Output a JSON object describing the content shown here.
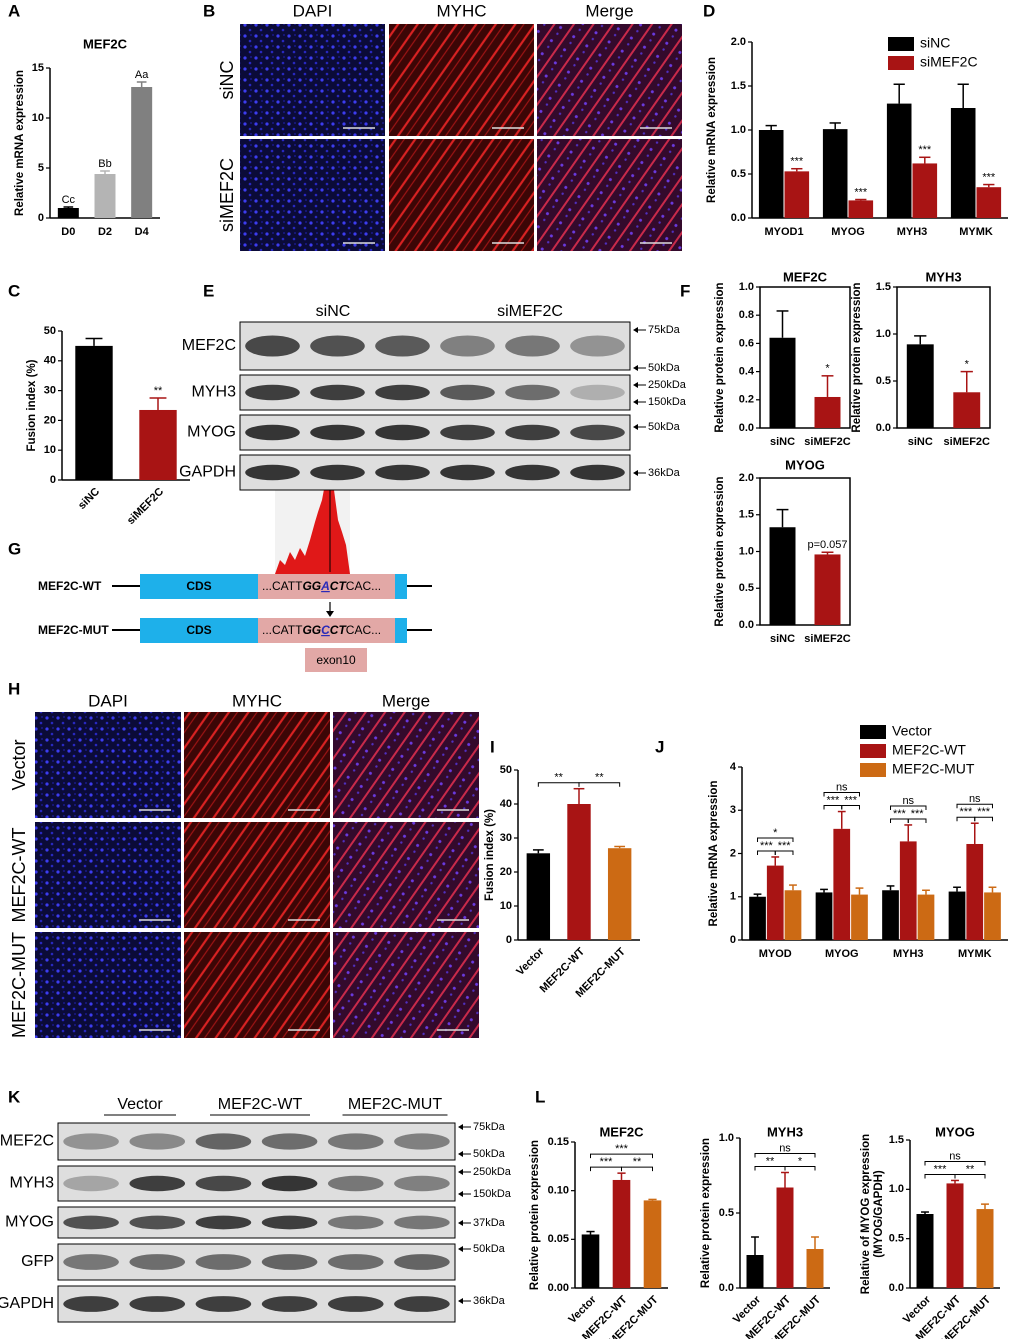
{
  "panel_labels": [
    "A",
    "B",
    "C",
    "D",
    "E",
    "F",
    "G",
    "H",
    "I",
    "J",
    "K",
    "L"
  ],
  "microscopy_b": {
    "columns": [
      "DAPI",
      "MYHC",
      "Merge"
    ],
    "rows": [
      "siNC",
      "siMEF2C"
    ]
  },
  "western_e": {
    "groups": [
      "siNC",
      "siMEF2C"
    ],
    "proteins": [
      "MEF2C",
      "MYH3",
      "MYOG",
      "GAPDH"
    ],
    "markers": [
      "75kDa",
      "50kDa",
      "250kDa",
      "150kDa",
      "50kDa",
      "36kDa"
    ]
  },
  "diagram_g": {
    "constructs": [
      {
        "name": "MEF2C-WT",
        "region": "CDS",
        "sequence": [
          "...CATT",
          "GG",
          "A",
          "CT",
          "CAC..."
        ]
      },
      {
        "name": "MEF2C-MUT",
        "region": "CDS",
        "sequence": [
          "...CATT",
          "GG",
          "C",
          "CT",
          "CAC..."
        ]
      }
    ],
    "exon": "exon10"
  },
  "microscopy_h": {
    "columns": [
      "DAPI",
      "MYHC",
      "Merge"
    ],
    "rows": [
      "Vector",
      "MEF2C-WT",
      "MEF2C-MUT"
    ]
  },
  "western_k": {
    "groups": [
      "Vector",
      "MEF2C-WT",
      "MEF2C-MUT"
    ],
    "proteins": [
      "MEF2C",
      "MYH3",
      "MYOG",
      "GFP",
      "GAPDH"
    ],
    "markers": [
      "75kDa",
      "50kDa",
      "250kDa",
      "150kDa",
      "37kDa",
      "50kDa",
      "36kDa"
    ]
  },
  "chart_data": [
    {
      "type": "bar",
      "title": "MEF2C",
      "ylabel": "Relative mRNA expression",
      "categories": [
        "D0",
        "D2",
        "D4"
      ],
      "values": [
        1,
        4.4,
        13.1
      ],
      "errors": [
        0.1,
        0.3,
        0.5
      ],
      "annotations": [
        "Cc",
        "Bb",
        "Aa"
      ],
      "colors": [
        "#000000",
        "#b4b4b4",
        "#808080"
      ],
      "ylim": [
        0,
        15
      ],
      "yticks": [
        0,
        5,
        10,
        15
      ]
    },
    {
      "type": "bar",
      "ylabel": "Relative mRNA expression",
      "categories": [
        "MYOD1",
        "MYOG",
        "MYH3",
        "MYMK"
      ],
      "series": [
        {
          "name": "siNC",
          "color": "#000000",
          "values": [
            1.0,
            1.01,
            1.3,
            1.25
          ],
          "errors": [
            0.05,
            0.07,
            0.22,
            0.27
          ]
        },
        {
          "name": "siMEF2C",
          "color": "#a81414",
          "values": [
            0.53,
            0.2,
            0.62,
            0.35
          ],
          "errors": [
            0.03,
            0.01,
            0.07,
            0.03
          ],
          "annotations": [
            "***",
            "***",
            "***",
            "***"
          ]
        }
      ],
      "ylim": [
        0,
        2
      ],
      "yticks": [
        {
          "value": 0,
          "label": "0.0"
        },
        0.5,
        {
          "value": 1,
          "label": "1.0"
        },
        1.5,
        {
          "value": 2,
          "label": "2.0"
        }
      ],
      "legend": "upper right"
    },
    {
      "type": "bar",
      "ylabel": "Fusion index (%)",
      "categories": [
        "siNC",
        "siMEF2C"
      ],
      "values": [
        45,
        23.5
      ],
      "errors": [
        2.5,
        4
      ],
      "annotations": [
        null,
        "**"
      ],
      "colors": [
        "#000000",
        "#a81414"
      ],
      "ylim": [
        0,
        50
      ],
      "yticks": [
        0,
        10,
        20,
        30,
        40,
        50
      ]
    },
    {
      "type": "bar",
      "title": "MEF2C",
      "ylabel": "Relative protein expression",
      "categories": [
        "siNC",
        "siMEF2C"
      ],
      "values": [
        0.64,
        0.22
      ],
      "errors": [
        0.19,
        0.15
      ],
      "annotations": [
        null,
        "*"
      ],
      "colors": [
        "#000000",
        "#a81414"
      ],
      "ylim": [
        0,
        1
      ],
      "yticks": [
        {
          "value": 0,
          "label": "0.0"
        },
        0.2,
        0.4,
        0.6,
        0.8,
        {
          "value": 1,
          "label": "1.0"
        }
      ]
    },
    {
      "type": "bar",
      "title": "MYH3",
      "ylabel": "Relative protein expression",
      "categories": [
        "siNC",
        "siMEF2C"
      ],
      "values": [
        0.89,
        0.38
      ],
      "errors": [
        0.09,
        0.22
      ],
      "annotations": [
        null,
        "*"
      ],
      "colors": [
        "#000000",
        "#a81414"
      ],
      "ylim": [
        0,
        1.5
      ],
      "yticks": [
        {
          "value": 0,
          "label": "0.0"
        },
        0.5,
        {
          "value": 1,
          "label": "1.0"
        },
        1.5
      ]
    },
    {
      "type": "bar",
      "title": "MYOG",
      "ylabel": "Relative protein expression",
      "categories": [
        "siNC",
        "siMEF2C"
      ],
      "values": [
        1.33,
        0.96
      ],
      "errors": [
        0.24,
        0.03
      ],
      "annotations": [
        null,
        "p=0.057"
      ],
      "colors": [
        "#000000",
        "#a81414"
      ],
      "ylim": [
        0,
        2
      ],
      "yticks": [
        {
          "value": 0,
          "label": "0.0"
        },
        0.5,
        {
          "value": 1,
          "label": "1.0"
        },
        1.5,
        {
          "value": 2,
          "label": "2.0"
        }
      ]
    },
    {
      "type": "bar",
      "ylabel": "Fusion index (%)",
      "categories": [
        "Vector",
        "MEF2C-WT",
        "MEF2C-MUT"
      ],
      "values": [
        25.5,
        40,
        27
      ],
      "errors": [
        1,
        4.5,
        0.5
      ],
      "colors": [
        "#000000",
        "#a81414",
        "#cc6a14"
      ],
      "brackets": [
        "**",
        "**"
      ],
      "ylim": [
        0,
        50
      ],
      "yticks": [
        0,
        10,
        20,
        30,
        40,
        50
      ]
    },
    {
      "type": "bar",
      "ylabel": "Relative mRNA expression",
      "categories": [
        "MYOD",
        "MYOG",
        "MYH3",
        "MYMK"
      ],
      "series": [
        {
          "name": "Vector",
          "color": "#000000",
          "values": [
            1.0,
            1.1,
            1.15,
            1.12
          ],
          "errors": [
            0.06,
            0.07,
            0.1,
            0.1
          ]
        },
        {
          "name": "MEF2C-WT",
          "color": "#a81414",
          "values": [
            1.72,
            2.57,
            2.28,
            2.22
          ],
          "errors": [
            0.2,
            0.4,
            0.38,
            0.48
          ]
        },
        {
          "name": "MEF2C-MUT",
          "color": "#cc6a14",
          "values": [
            1.15,
            1.05,
            1.05,
            1.1
          ],
          "errors": [
            0.12,
            0.15,
            0.1,
            0.12
          ]
        }
      ],
      "brackets": [
        [
          "***",
          "***",
          "*"
        ],
        [
          "***",
          "***",
          "ns"
        ],
        [
          "***",
          "***",
          "ns"
        ],
        [
          "***",
          "***",
          "ns"
        ]
      ],
      "ylim": [
        0,
        4
      ],
      "yticks": [
        0,
        1,
        2,
        3,
        4
      ],
      "legend": "top"
    },
    {
      "type": "bar",
      "title": "MEF2C",
      "ylabel": "Relative protein expression",
      "categories": [
        "Vector",
        "MEF2C-WT",
        "MEF2C-MUT"
      ],
      "values": [
        0.055,
        0.111,
        0.09
      ],
      "errors": [
        0.003,
        0.007,
        0.001
      ],
      "colors": [
        "#000000",
        "#a81414",
        "#cc6a14"
      ],
      "brackets": [
        "***",
        "**",
        "***"
      ],
      "ylim": [
        0,
        0.15
      ],
      "yticks": [
        {
          "value": 0,
          "label": "0.00"
        },
        0.05,
        {
          "value": 0.1,
          "label": "0.10"
        },
        0.15
      ]
    },
    {
      "type": "bar",
      "title": "MYH3",
      "ylabel": "Relative protein expression",
      "categories": [
        "Vector",
        "MEF2C-WT",
        "MEF2C-MUT"
      ],
      "values": [
        0.22,
        0.67,
        0.26
      ],
      "errors": [
        0.12,
        0.1,
        0.08
      ],
      "colors": [
        "#000000",
        "#a81414",
        "#cc6a14"
      ],
      "brackets": [
        "**",
        "*",
        "ns"
      ],
      "ylim": [
        0,
        1
      ],
      "yticks": [
        {
          "value": 0,
          "label": "0.0"
        },
        0.5,
        {
          "value": 1,
          "label": "1.0"
        }
      ]
    },
    {
      "type": "bar",
      "title": "MYOG",
      "ylabel": [
        "Relative of MYOG expression",
        "(MYOG/GAPDH)"
      ],
      "categories": [
        "Vector",
        "MEF2C-WT",
        "MEF2C-MUT"
      ],
      "values": [
        0.75,
        1.06,
        0.8
      ],
      "errors": [
        0.02,
        0.03,
        0.05
      ],
      "colors": [
        "#000000",
        "#a81414",
        "#cc6a14"
      ],
      "brackets": [
        "***",
        "**",
        "ns"
      ],
      "ylim": [
        0,
        1.5
      ],
      "yticks": [
        {
          "value": 0,
          "label": "0.0"
        },
        0.5,
        {
          "value": 1,
          "label": "1.0"
        },
        1.5
      ]
    }
  ]
}
